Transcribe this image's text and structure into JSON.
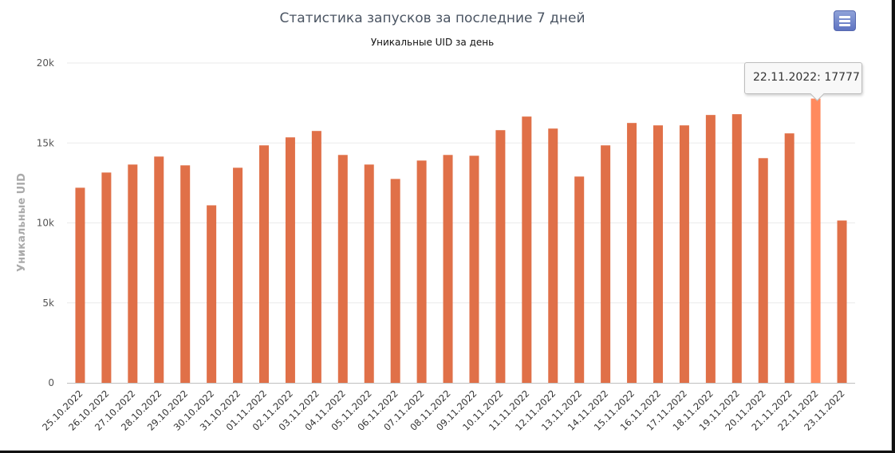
{
  "chart_data": {
    "type": "bar",
    "title": "Статистика запусков за последние 7 дней",
    "subtitle": "Уникальные UID за день",
    "ylabel": "Уникальные UID",
    "xlabel": "",
    "ylim": [
      0,
      20000
    ],
    "yticks": [
      0,
      5000,
      10000,
      15000,
      20000
    ],
    "ytick_labels": [
      "0",
      "5k",
      "10k",
      "15k",
      "20k"
    ],
    "grid": true,
    "legend": "none",
    "categories": [
      "25.10.2022",
      "26.10.2022",
      "27.10.2022",
      "28.10.2022",
      "29.10.2022",
      "30.10.2022",
      "31.10.2022",
      "01.11.2022",
      "02.11.2022",
      "03.11.2022",
      "04.11.2022",
      "05.11.2022",
      "06.11.2022",
      "07.11.2022",
      "08.11.2022",
      "09.11.2022",
      "10.11.2022",
      "11.11.2022",
      "12.11.2022",
      "13.11.2022",
      "14.11.2022",
      "15.11.2022",
      "16.11.2022",
      "17.11.2022",
      "18.11.2022",
      "19.11.2022",
      "20.11.2022",
      "21.11.2022",
      "22.11.2022",
      "23.11.2022"
    ],
    "values": [
      12200,
      13150,
      13650,
      14150,
      13600,
      11100,
      13450,
      14850,
      15350,
      15750,
      14250,
      13650,
      12750,
      13900,
      14250,
      14200,
      15800,
      16650,
      15900,
      12900,
      14850,
      16250,
      16100,
      16100,
      16750,
      16800,
      14050,
      15600,
      17777,
      10150
    ],
    "bar_color": "#e07048",
    "highlight_color": "#ff8a5e",
    "highlight_index": 28
  },
  "tooltip": {
    "text": "22.11.2022: 17777"
  },
  "menu": {
    "icon": "menu-icon"
  }
}
